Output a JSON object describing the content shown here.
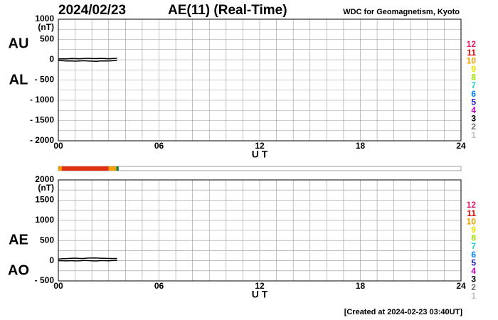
{
  "header": {
    "date": "2024/02/23",
    "title": "AE(11) (Real-Time)",
    "source": "WDC for Geomagnetism, Kyoto"
  },
  "footer": "[Created at 2024-02-23 03:40UT]",
  "station_key": [
    {
      "label": "12",
      "color": "#e0206e"
    },
    {
      "label": "11",
      "color": "#e00000"
    },
    {
      "label": "10",
      "color": "#f0a000"
    },
    {
      "label": "9",
      "color": "#e8e000"
    },
    {
      "label": "8",
      "color": "#a0e000"
    },
    {
      "label": "7",
      "color": "#20d0d0"
    },
    {
      "label": "6",
      "color": "#0080ff"
    },
    {
      "label": "5",
      "color": "#2020c0"
    },
    {
      "label": "4",
      "color": "#c000c0"
    },
    {
      "label": "3",
      "color": "#000000"
    },
    {
      "label": "2",
      "color": "#707070"
    },
    {
      "label": "1",
      "color": "#c0c0c0"
    }
  ],
  "station_bar": {
    "xlim": [
      0,
      24
    ],
    "segments": [
      {
        "start": 0,
        "end": 0.2,
        "color": "#f0a000"
      },
      {
        "start": 0.2,
        "end": 3,
        "color": "#e03010"
      },
      {
        "start": 3,
        "end": 3.45,
        "color": "#f0a000"
      },
      {
        "start": 3.45,
        "end": 3.6,
        "color": "#208040"
      }
    ]
  },
  "chart_data": [
    {
      "type": "line",
      "y_unit": "(nT)",
      "x_label": "U T",
      "x": [
        0,
        0.25,
        0.5,
        0.75,
        1,
        1.25,
        1.5,
        1.75,
        2,
        2.25,
        2.5,
        2.75,
        3,
        3.25,
        3.5
      ],
      "series": [
        {
          "name": "AU",
          "color": "#000000",
          "values": [
            20,
            25,
            22,
            30,
            28,
            25,
            30,
            35,
            30,
            28,
            32,
            30,
            25,
            30,
            35
          ]
        },
        {
          "name": "AL",
          "color": "#000000",
          "values": [
            -20,
            -25,
            -30,
            -28,
            -35,
            -30,
            -25,
            -30,
            -35,
            -40,
            -30,
            -28,
            -30,
            -25,
            -20
          ]
        }
      ],
      "xlim": [
        0,
        24
      ],
      "ylim": [
        -2000,
        1000
      ],
      "xticks": [
        {
          "value": 0,
          "label": "00"
        },
        {
          "value": 6,
          "label": "06"
        },
        12,
        18,
        24
      ],
      "yticks": [
        {
          "value": -2000,
          "label": "- 2000"
        },
        {
          "value": -1500,
          "label": "- 1500"
        },
        {
          "value": -1000,
          "label": "- 1000"
        },
        {
          "value": -500,
          "label": "- 500"
        },
        0,
        500,
        1000
      ],
      "xgrid": [
        0,
        1,
        2,
        3,
        4,
        5,
        6,
        7,
        8,
        9,
        10,
        11,
        12,
        13,
        14,
        15,
        16,
        17,
        18,
        19,
        20,
        21,
        22,
        23,
        24
      ],
      "ygrid": [
        -2000,
        -1750,
        -1500,
        -1250,
        -1000,
        -750,
        -500,
        -250,
        0,
        250,
        500,
        750,
        1000
      ]
    },
    {
      "type": "line",
      "y_unit": "(nT)",
      "x_label": "U T",
      "x": [
        0,
        0.25,
        0.5,
        0.75,
        1,
        1.25,
        1.5,
        1.75,
        2,
        2.25,
        2.5,
        2.75,
        3,
        3.25,
        3.5
      ],
      "series": [
        {
          "name": "AE",
          "color": "#000000",
          "values": [
            40,
            50,
            52,
            58,
            63,
            55,
            55,
            65,
            65,
            68,
            62,
            58,
            55,
            55,
            55
          ]
        },
        {
          "name": "AO",
          "color": "#000000",
          "values": [
            0,
            0,
            -4,
            1,
            -4,
            -3,
            3,
            3,
            -3,
            -6,
            1,
            1,
            -3,
            3,
            8
          ]
        }
      ],
      "xlim": [
        0,
        24
      ],
      "ylim": [
        -500,
        2000
      ],
      "xticks": [
        {
          "value": 0,
          "label": "00"
        },
        {
          "value": 6,
          "label": "06"
        },
        12,
        18,
        24
      ],
      "yticks": [
        {
          "value": -500,
          "label": "- 500"
        },
        0,
        500,
        1000,
        1500,
        2000
      ],
      "xgrid": [
        0,
        1,
        2,
        3,
        4,
        5,
        6,
        7,
        8,
        9,
        10,
        11,
        12,
        13,
        14,
        15,
        16,
        17,
        18,
        19,
        20,
        21,
        22,
        23,
        24
      ],
      "ygrid": [
        -500,
        -250,
        0,
        250,
        500,
        750,
        1000,
        1250,
        1500,
        1750,
        2000
      ]
    }
  ]
}
